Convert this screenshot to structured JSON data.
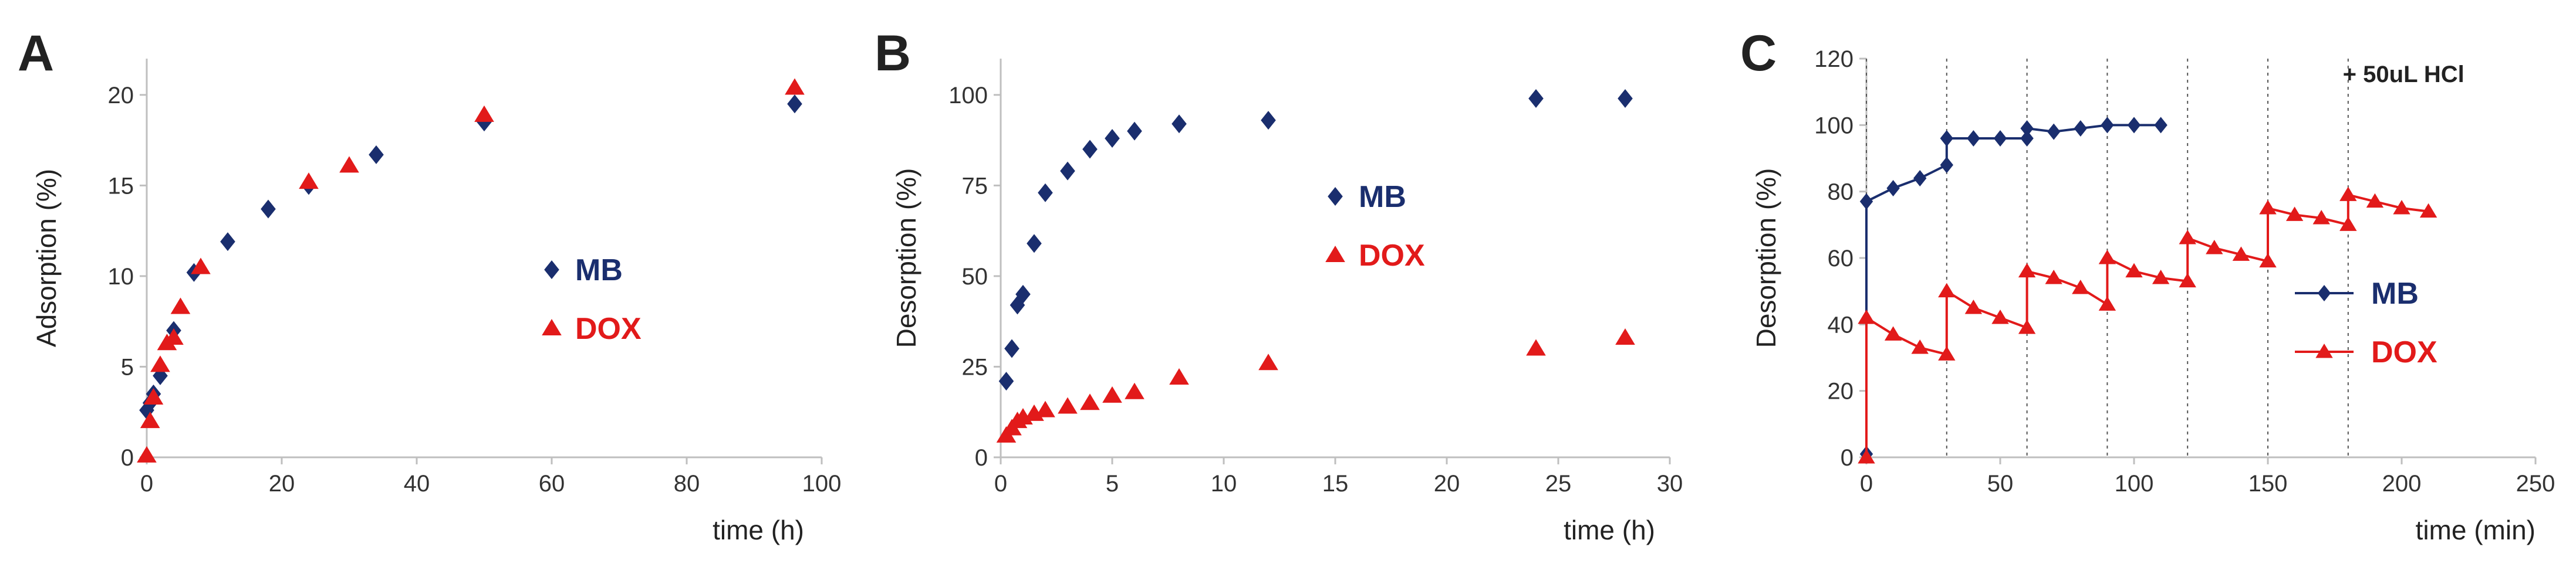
{
  "colors": {
    "MB": "#1a2e6e",
    "DOX": "#e21a1a",
    "axis": "#bfbfbf",
    "guide": "#555555"
  },
  "chart_data": [
    {
      "panel": "A",
      "type": "scatter",
      "xlabel": "time (h)",
      "ylabel": "Adsorption (%)",
      "xlim": [
        0,
        100
      ],
      "ylim": [
        0,
        22
      ],
      "xticks": [
        "0",
        "20",
        "40",
        "60",
        "80",
        "100"
      ],
      "yticks": [
        "0",
        "5",
        "10",
        "15",
        "20"
      ],
      "legend": "center-right",
      "series": [
        {
          "name": "MB",
          "marker": "diamond",
          "color": "#1a2e6e",
          "x": [
            0,
            0.5,
            1,
            2,
            4,
            7,
            12,
            18,
            24,
            34,
            50,
            96
          ],
          "y": [
            2.6,
            3,
            3.5,
            4.5,
            7,
            10.2,
            11.9,
            13.7,
            15,
            16.7,
            18.5,
            19.5
          ]
        },
        {
          "name": "DOX",
          "marker": "triangle",
          "color": "#e21a1a",
          "x": [
            0,
            0.5,
            1,
            2,
            3,
            4,
            5,
            8,
            24,
            30,
            50,
            96
          ],
          "y": [
            0.1,
            2,
            3.3,
            5.1,
            6.3,
            6.6,
            8.3,
            10.5,
            15.2,
            16.1,
            18.9,
            20.4
          ]
        }
      ]
    },
    {
      "panel": "B",
      "type": "scatter",
      "xlabel": "time (h)",
      "ylabel": "Desorption (%)",
      "xlim": [
        0,
        30
      ],
      "ylim": [
        0,
        110
      ],
      "xticks": [
        "0",
        "5",
        "10",
        "15",
        "20",
        "25",
        "30"
      ],
      "yticks": [
        "0",
        "25",
        "50",
        "75",
        "100"
      ],
      "legend": "center-right",
      "series": [
        {
          "name": "MB",
          "marker": "diamond",
          "color": "#1a2e6e",
          "x": [
            0.25,
            0.5,
            0.75,
            1,
            1.5,
            2,
            3,
            4,
            5,
            6,
            8,
            12,
            24,
            28
          ],
          "y": [
            21,
            30,
            42,
            45,
            59,
            73,
            79,
            85,
            88,
            90,
            92,
            93,
            99,
            99
          ]
        },
        {
          "name": "DOX",
          "marker": "triangle",
          "color": "#e21a1a",
          "x": [
            0.25,
            0.5,
            0.75,
            1,
            1.5,
            2,
            3,
            4,
            5,
            6,
            8,
            12,
            24,
            28
          ],
          "y": [
            6,
            8,
            10,
            11,
            12,
            13,
            14,
            15,
            17,
            18,
            22,
            26,
            30,
            33
          ]
        }
      ]
    },
    {
      "panel": "C",
      "type": "line",
      "xlabel": "time (min)",
      "ylabel": "Desorption (%)",
      "xlim": [
        0,
        250
      ],
      "ylim": [
        0,
        120
      ],
      "xticks": [
        "0",
        "50",
        "100",
        "150",
        "200",
        "250"
      ],
      "yticks": [
        "0",
        "20",
        "40",
        "60",
        "80",
        "100",
        "120"
      ],
      "legend": "center-right",
      "annotation": "+ 50uL HCl",
      "hcl_additions_min": [
        0,
        30,
        60,
        90,
        120,
        150,
        180
      ],
      "series": [
        {
          "name": "MB",
          "marker": "diamond",
          "color": "#1a2e6e",
          "x": [
            0,
            0,
            10,
            20,
            30,
            30,
            40,
            50,
            60,
            60,
            70,
            80,
            90,
            100,
            110
          ],
          "y": [
            1,
            77,
            81,
            84,
            88,
            96,
            96,
            96,
            96,
            99,
            98,
            99,
            100,
            100,
            100
          ]
        },
        {
          "name": "DOX",
          "marker": "triangle",
          "color": "#e21a1a",
          "x": [
            0,
            0,
            10,
            20,
            30,
            30,
            40,
            50,
            60,
            60,
            70,
            80,
            90,
            90,
            100,
            110,
            120,
            120,
            130,
            140,
            150,
            150,
            160,
            170,
            180,
            180,
            190,
            200,
            210
          ],
          "y": [
            0,
            42,
            37,
            33,
            31,
            50,
            45,
            42,
            39,
            56,
            54,
            51,
            46,
            60,
            56,
            54,
            53,
            66,
            63,
            61,
            59,
            75,
            73,
            72,
            70,
            79,
            77,
            75,
            74
          ]
        }
      ]
    }
  ],
  "panels": [
    {
      "letter": "A"
    },
    {
      "letter": "B"
    },
    {
      "letter": "C"
    }
  ]
}
